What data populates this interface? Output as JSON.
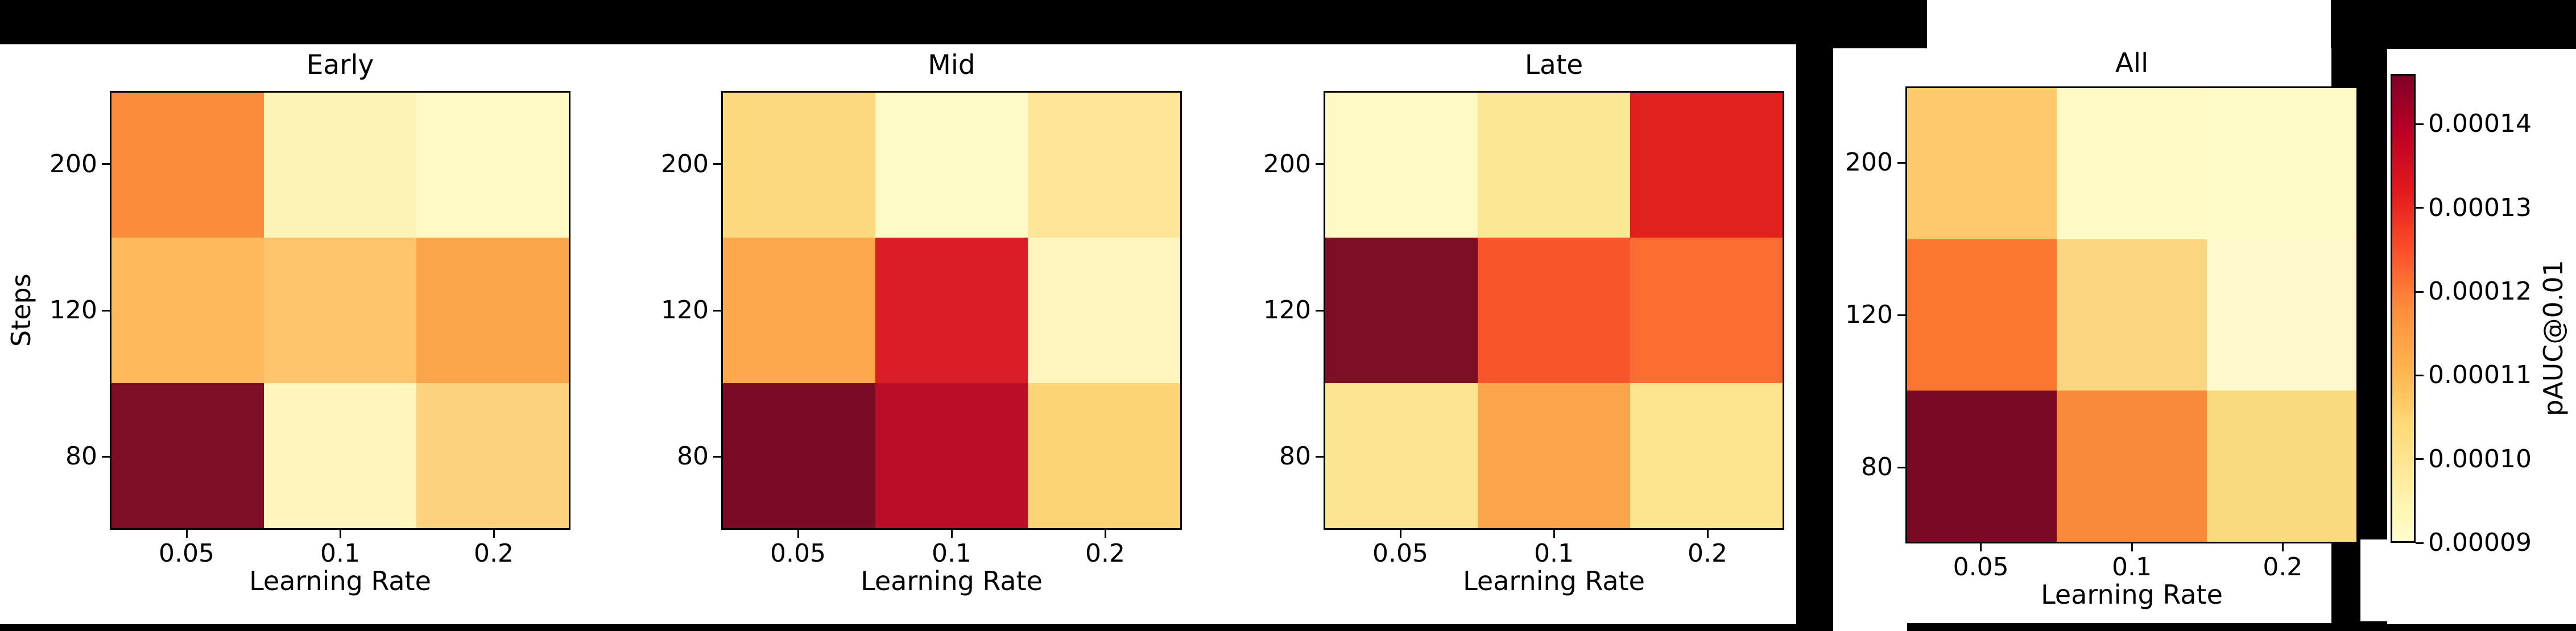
{
  "chart_data": {
    "type": "heatmap",
    "colormap": "YlOrRd",
    "x_categories": [
      "0.05",
      "0.1",
      "0.2"
    ],
    "y_categories": [
      "200",
      "120",
      "80"
    ],
    "xlabel": "Learning Rate",
    "ylabel": "Steps",
    "panels": [
      {
        "id": "early",
        "title": "Early",
        "values": [
          [
            0.000118,
            9.4e-05,
            9.2e-05
          ],
          [
            0.000109,
            0.000107,
            0.000114
          ],
          [
            0.000145,
            9.3e-05,
            0.000104
          ]
        ],
        "cell_colors": [
          [
            "#fa8c3c",
            "#fef3b9",
            "#fffac5"
          ],
          [
            "#fdb95c",
            "#fdc46c",
            "#fba54a"
          ],
          [
            "#7d0c25",
            "#fef6bc",
            "#fdd37d"
          ]
        ]
      },
      {
        "id": "mid",
        "title": "Mid",
        "values": [
          [
            0.000102,
            9.1e-05,
            9.8e-05
          ],
          [
            0.000112,
            0.000134,
            9.3e-05
          ],
          [
            0.000146,
            0.000139,
            0.000104
          ]
        ],
        "cell_colors": [
          [
            "#fdda7f",
            "#fffbc9",
            "#fee59a"
          ],
          [
            "#fca94e",
            "#d91e26",
            "#fef6be"
          ],
          [
            "#7b0b25",
            "#bb0e26",
            "#fdd476"
          ]
        ]
      },
      {
        "id": "late",
        "title": "Late",
        "values": [
          [
            9.2e-05,
            9.9e-05,
            0.000132
          ],
          [
            0.000146,
            0.000123,
            0.00012
          ],
          [
            9.9e-05,
            0.000114,
            9.9e-05
          ]
        ],
        "cell_colors": [
          [
            "#fffac4",
            "#fce795",
            "#e2211d"
          ],
          [
            "#7d0c25",
            "#f9562b",
            "#f96d32"
          ],
          [
            "#fde491",
            "#fba44b",
            "#fde48f"
          ]
        ]
      },
      {
        "id": "all",
        "title": "All",
        "values": [
          [
            0.000106,
            9.2e-05,
            9.1e-05
          ],
          [
            0.000121,
            0.000103,
            9.2e-05
          ],
          [
            0.000146,
            0.000118,
            0.000102
          ]
        ],
        "cell_colors": [
          [
            "#fdc96c",
            "#fffac4",
            "#fffbc8"
          ],
          [
            "#f9772e",
            "#fcd57f",
            "#fff8ca"
          ],
          [
            "#790a24",
            "#fa8a3c",
            "#fcda80"
          ]
        ]
      }
    ],
    "colorbar": {
      "label": "pAUC@0.01",
      "tick_labels": [
        "0.00014",
        "0.00013",
        "0.00012",
        "0.00011",
        "0.00010",
        "0.00009"
      ],
      "tick_values": [
        0.00014,
        0.00013,
        0.00012,
        0.00011,
        0.0001,
        9e-05
      ],
      "vmin": 9e-05,
      "vmax": 0.000146,
      "gradient_top_to_bottom": [
        "#800026",
        "#bd0026",
        "#e31a1c",
        "#fc4e2a",
        "#fd8d3c",
        "#feb24c",
        "#fed976",
        "#ffeda0",
        "#ffffcc"
      ]
    },
    "layout_hints": {
      "grid": "off",
      "legend": "none",
      "colorbar_position": "right"
    }
  }
}
